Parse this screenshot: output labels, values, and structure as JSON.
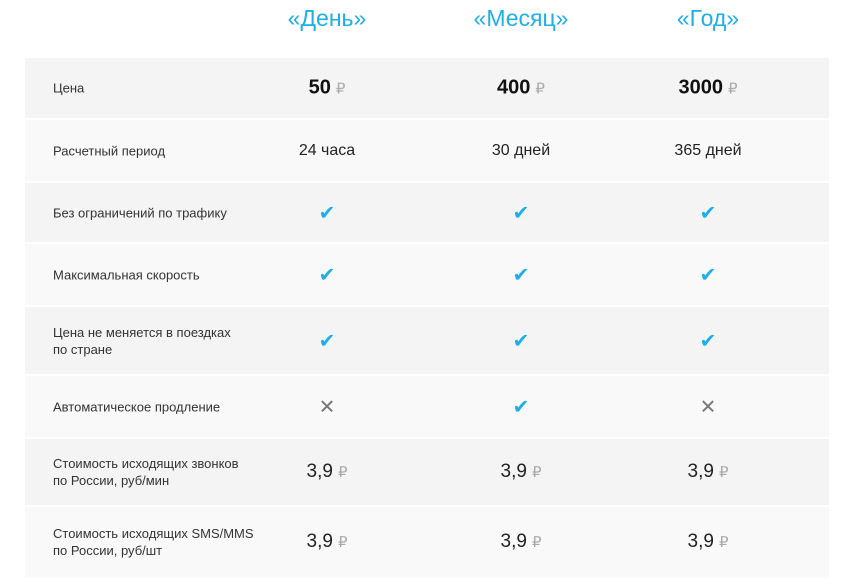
{
  "plans": [
    "«День»",
    "«Месяц»",
    "«Год»"
  ],
  "currency_symbol": "₽",
  "colors": {
    "accent": "#1eaee8",
    "cross": "#777777"
  },
  "rows": [
    {
      "label": "Цена",
      "cells": [
        {
          "type": "price-big",
          "value": "50"
        },
        {
          "type": "price-big",
          "value": "400"
        },
        {
          "type": "price-big",
          "value": "3000"
        }
      ]
    },
    {
      "label": "Расчетный период",
      "cells": [
        {
          "type": "text",
          "value": "24 часа"
        },
        {
          "type": "text",
          "value": "30 дней"
        },
        {
          "type": "text",
          "value": "365 дней"
        }
      ]
    },
    {
      "label": "Без ограничений по трафику",
      "cells": [
        {
          "type": "check-icon"
        },
        {
          "type": "check-icon"
        },
        {
          "type": "check-icon"
        }
      ]
    },
    {
      "label": "Максимальная скорость",
      "cells": [
        {
          "type": "check-icon"
        },
        {
          "type": "check-icon"
        },
        {
          "type": "check-icon"
        }
      ]
    },
    {
      "label": "Цена не меняется в поездках\nпо стране",
      "cells": [
        {
          "type": "check-icon"
        },
        {
          "type": "check-icon"
        },
        {
          "type": "check-icon"
        }
      ]
    },
    {
      "label": "Автоматическое продление",
      "cells": [
        {
          "type": "cross-icon"
        },
        {
          "type": "check-icon"
        },
        {
          "type": "cross-icon"
        }
      ]
    },
    {
      "label": "Стоимость исходящих звонков\nпо России, руб/мин",
      "cells": [
        {
          "type": "price",
          "value": "3,9"
        },
        {
          "type": "price",
          "value": "3,9"
        },
        {
          "type": "price",
          "value": "3,9"
        }
      ]
    },
    {
      "label": "Стоимость исходящих SMS/MMS\nпо России, руб/шт",
      "cells": [
        {
          "type": "price",
          "value": "3,9"
        },
        {
          "type": "price",
          "value": "3,9"
        },
        {
          "type": "price",
          "value": "3,9"
        }
      ]
    }
  ]
}
